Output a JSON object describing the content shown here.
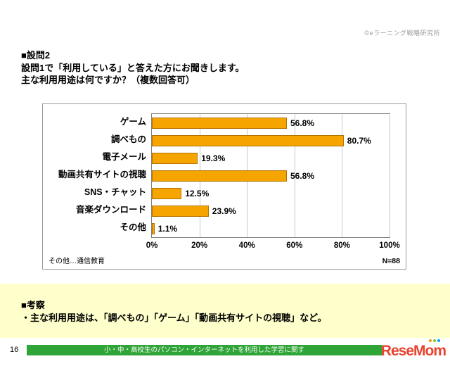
{
  "header": {
    "copyright": "©eラーニング戦略研究所"
  },
  "question": {
    "section_label": "■設問2",
    "line1": "設問1で「利用している」と答えた方にお聞きします。",
    "line2": "主な利用用途は何ですか？（複数回答可）"
  },
  "chart_data": {
    "type": "bar",
    "orientation": "horizontal",
    "categories": [
      "ゲーム",
      "調べもの",
      "電子メール",
      "動画共有サイトの視聴",
      "SNS・チャット",
      "音楽ダウンロード",
      "その他"
    ],
    "values": [
      56.8,
      80.7,
      19.3,
      56.8,
      12.5,
      23.9,
      1.1
    ],
    "value_labels": [
      "56.8%",
      "80.7%",
      "19.3%",
      "56.8%",
      "12.5%",
      "23.9%",
      "1.1%"
    ],
    "x_ticks": [
      "0%",
      "20%",
      "40%",
      "60%",
      "80%",
      "100%"
    ],
    "xlim": [
      0,
      100
    ],
    "grid": true,
    "legend": "none",
    "bar_color": "#f6a500"
  },
  "chart_footer": {
    "note": "その他…通信教育",
    "sample": "N=88"
  },
  "analysis": {
    "heading": "■考察",
    "bullet": "・主な利用用途は、「調べもの」「ゲーム」「動画共有サイトの視聴」など。"
  },
  "footer": {
    "page_number": "16",
    "strip_text": "小・中・高校生のパソコン・インターネットを利用した学習に関す",
    "logo_text": "ReseMom"
  },
  "colors": {
    "bar": "#f6a500",
    "analysis_background": "#ffffcc",
    "footer_strip": "#2fa437",
    "logo": "#e9422e"
  }
}
